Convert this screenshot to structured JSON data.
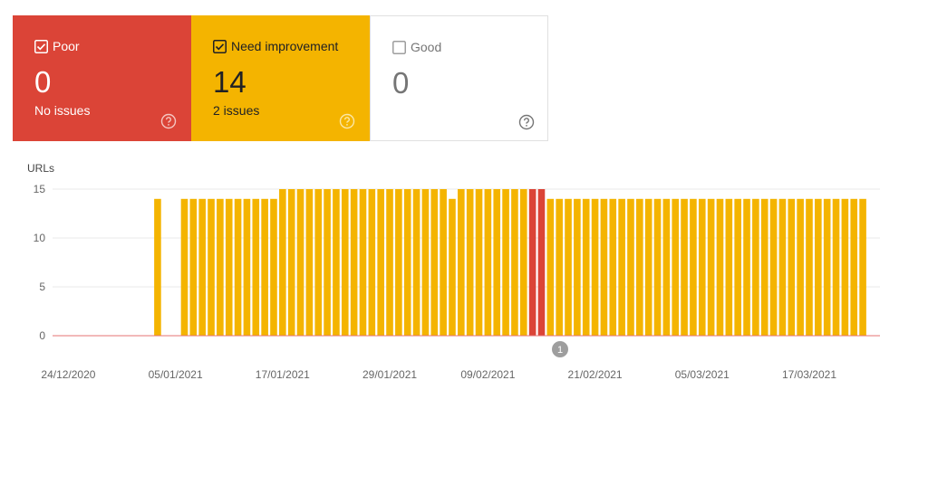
{
  "cards": [
    {
      "label": "Poor",
      "count": 0,
      "subtitle": "No issues",
      "color": "#db4437"
    },
    {
      "label": "Need improvement",
      "count": 14,
      "subtitle": "2 issues",
      "color": "#f4b400"
    },
    {
      "label": "Good",
      "count": 0,
      "color": "#ffffff"
    }
  ],
  "chart_data": {
    "type": "bar",
    "stacked": true,
    "y_label": "URLs",
    "annotation": "1",
    "categories": [
      "24/12/2020",
      null,
      null,
      null,
      null,
      null,
      null,
      null,
      null,
      null,
      null,
      null,
      "05/01/2021",
      null,
      null,
      null,
      null,
      null,
      null,
      null,
      null,
      null,
      null,
      null,
      "17/01/2021",
      null,
      null,
      null,
      null,
      null,
      null,
      null,
      null,
      null,
      null,
      null,
      "29/01/2021",
      null,
      null,
      null,
      null,
      null,
      null,
      null,
      null,
      null,
      null,
      "09/02/2021",
      null,
      null,
      null,
      null,
      null,
      null,
      null,
      null,
      null,
      null,
      null,
      "21/02/2021",
      null,
      null,
      null,
      null,
      null,
      null,
      null,
      null,
      null,
      null,
      null,
      "05/03/2021",
      null,
      null,
      null,
      null,
      null,
      null,
      null,
      null,
      null,
      null,
      null,
      "17/03/2021",
      null,
      null,
      null,
      null,
      null,
      null
    ],
    "series": [
      {
        "name": "Poor",
        "color": "#db4437",
        "values": [
          0,
          0,
          0,
          0,
          0,
          0,
          0,
          0,
          0,
          0,
          0,
          0,
          0,
          0,
          0,
          0,
          0,
          0,
          0,
          0,
          0,
          0,
          0,
          0,
          0,
          0,
          0,
          0,
          0,
          0,
          0,
          0,
          0,
          0,
          0,
          0,
          0,
          0,
          0,
          0,
          0,
          0,
          0,
          0,
          0,
          0,
          0,
          0,
          0,
          0,
          0,
          0,
          15,
          15,
          0,
          0,
          0,
          0,
          0,
          0,
          0,
          0,
          0,
          0,
          0,
          0,
          0,
          0,
          0,
          0,
          0,
          0,
          0,
          0,
          0,
          0,
          0,
          0,
          0,
          0,
          0,
          0,
          0,
          0,
          0,
          0,
          0,
          0,
          0,
          0
        ]
      },
      {
        "name": "Need improvement",
        "color": "#f4b400",
        "values": [
          0,
          0,
          0,
          0,
          0,
          0,
          0,
          0,
          0,
          0,
          14,
          0,
          0,
          14,
          14,
          14,
          14,
          14,
          14,
          14,
          14,
          14,
          14,
          14,
          15,
          15,
          15,
          15,
          15,
          15,
          15,
          15,
          15,
          15,
          15,
          15,
          15,
          15,
          15,
          15,
          15,
          15,
          15,
          14,
          15,
          15,
          15,
          15,
          15,
          15,
          15,
          15,
          0,
          0,
          14,
          14,
          14,
          14,
          14,
          14,
          14,
          14,
          14,
          14,
          14,
          14,
          14,
          14,
          14,
          14,
          14,
          14,
          14,
          14,
          14,
          14,
          14,
          14,
          14,
          14,
          14,
          14,
          14,
          14,
          14,
          14,
          14,
          14,
          14,
          14
        ]
      }
    ],
    "ylim": [
      0,
      15
    ],
    "yticks": [
      0,
      5,
      10,
      15
    ],
    "grid": true
  }
}
